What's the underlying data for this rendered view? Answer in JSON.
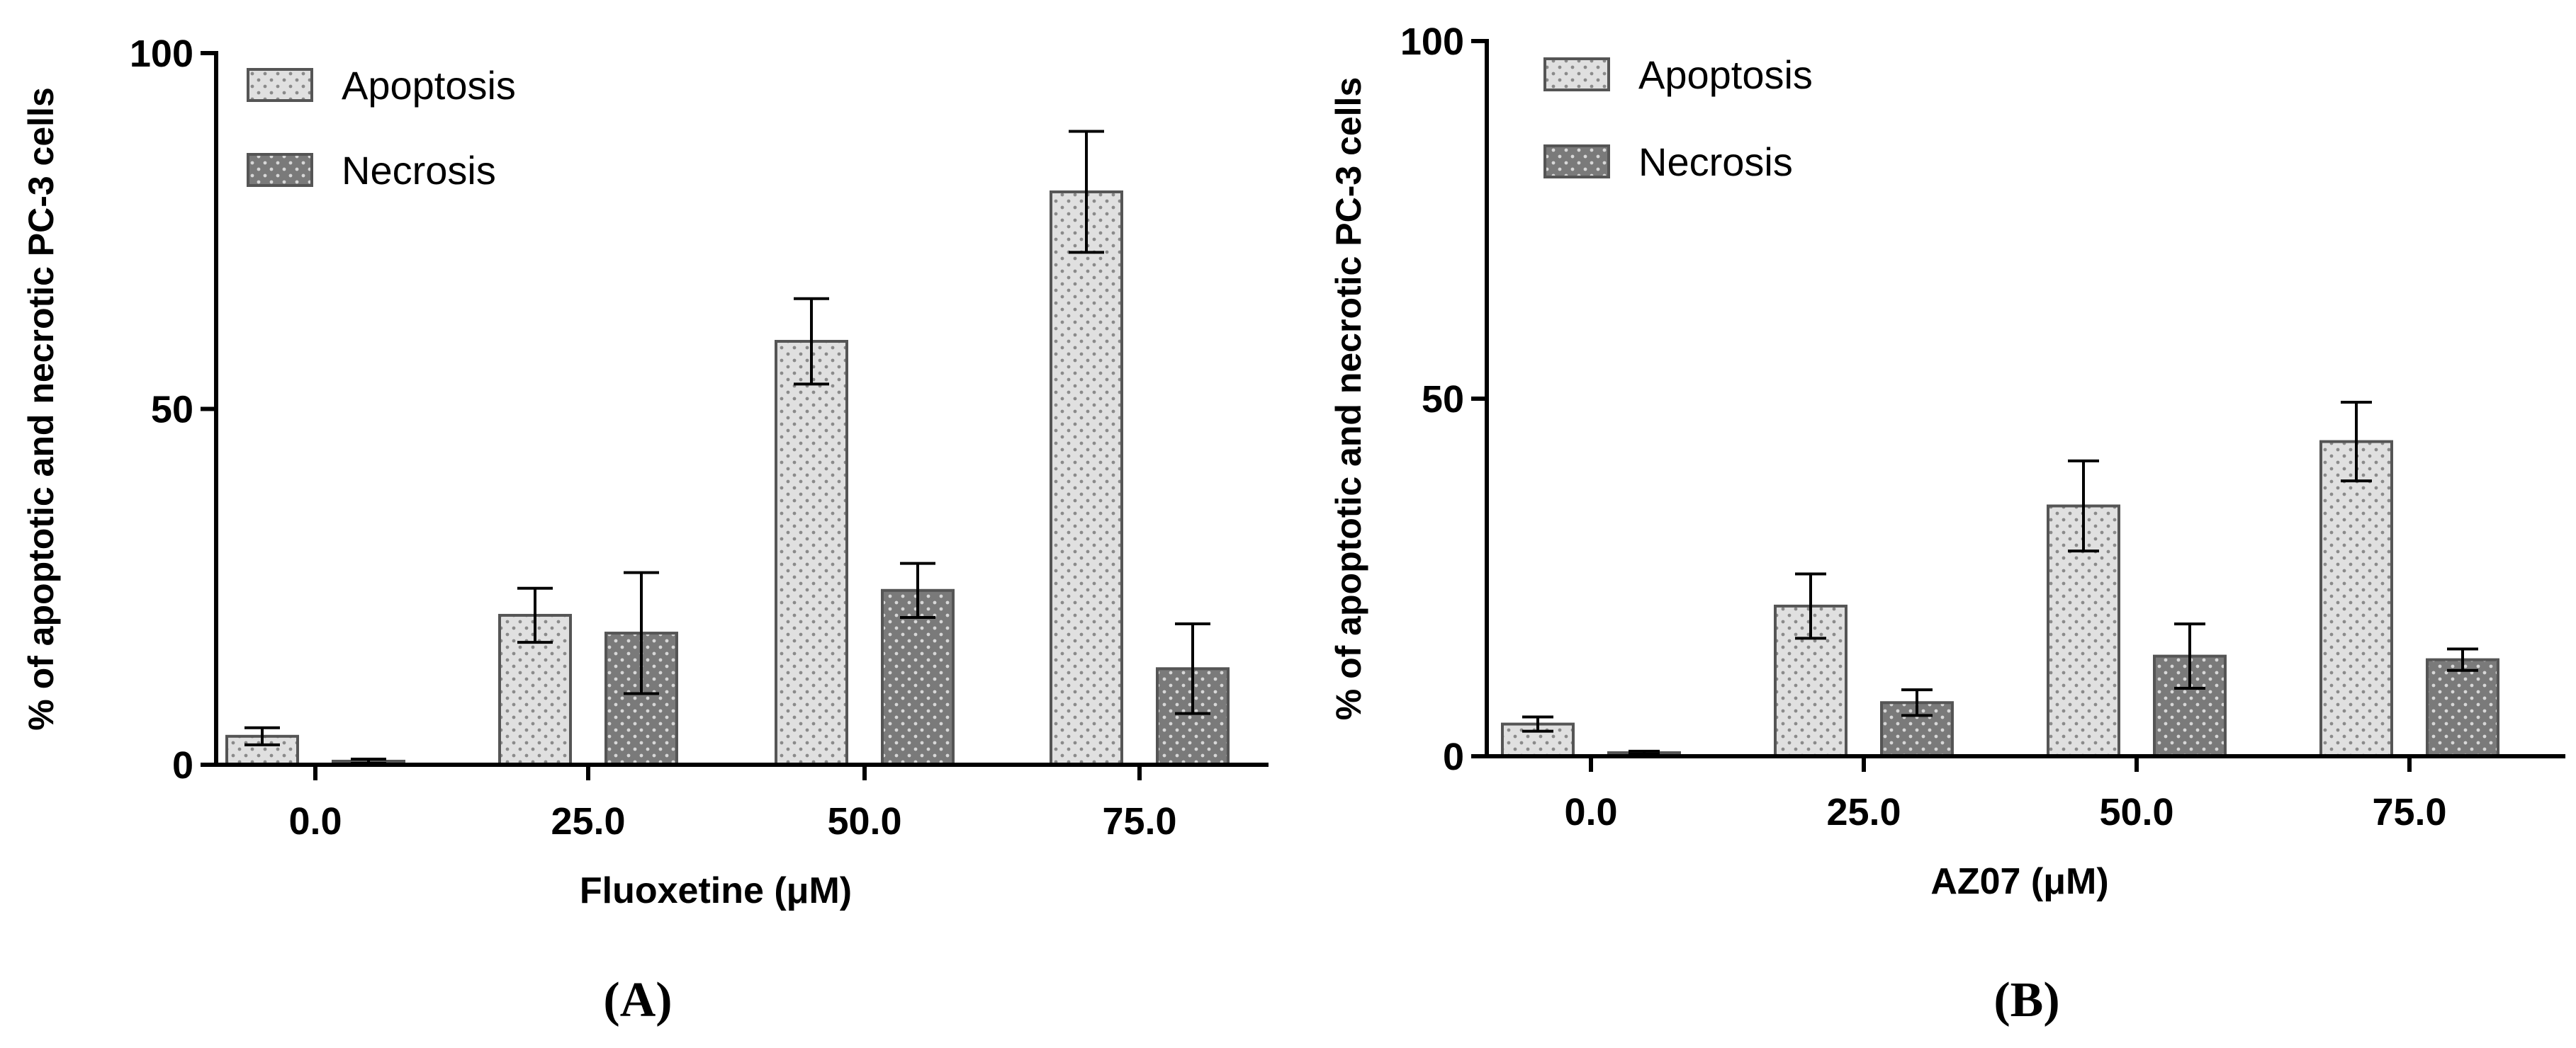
{
  "colors": {
    "apoptosis": "#e0e0e0",
    "necrosis": "#7a7a7a",
    "apoptosis_dots": "#8a8a8a",
    "necrosis_dots": "#d8d8d8"
  },
  "chart_data": [
    {
      "type": "bar",
      "panel_label": "(A)",
      "categories": [
        "0.0",
        "25.0",
        "50.0",
        "75.0"
      ],
      "xlabel": "Fluoxetine (μM)",
      "ylabel": "% of apoptotic and necrotic PC-3 cells",
      "ylim": [
        0,
        100
      ],
      "yticks": [
        "0",
        "50",
        "100"
      ],
      "legend_position": "top-left",
      "series": [
        {
          "name": "Apoptosis",
          "values": [
            4,
            21,
            59.5,
            80.5
          ],
          "errors": [
            1.2,
            3.8,
            6,
            8.5
          ]
        },
        {
          "name": "Necrosis",
          "values": [
            0.5,
            18.5,
            24.5,
            13.5
          ],
          "errors": [
            0.3,
            8.5,
            3.8,
            6.3
          ]
        }
      ]
    },
    {
      "type": "bar",
      "panel_label": "(B)",
      "categories": [
        "0.0",
        "25.0",
        "50.0",
        "75.0"
      ],
      "xlabel": "AZ07 (μM)",
      "ylabel": "% of apoptotic and necrotic PC-3 cells",
      "ylim": [
        0,
        100
      ],
      "yticks": [
        "0",
        "50",
        "100"
      ],
      "legend_position": "top-left",
      "series": [
        {
          "name": "Apoptosis",
          "values": [
            4.5,
            21,
            35,
            44
          ],
          "errors": [
            1,
            4.5,
            6.3,
            5.5
          ]
        },
        {
          "name": "Necrosis",
          "values": [
            0.5,
            7.5,
            14,
            13.5
          ],
          "errors": [
            0.2,
            1.8,
            4.5,
            1.5
          ]
        }
      ]
    }
  ]
}
